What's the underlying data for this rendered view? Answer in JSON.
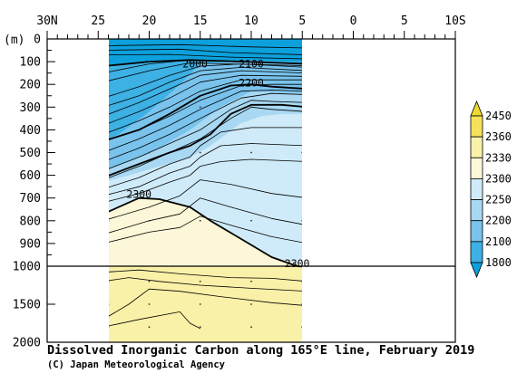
{
  "chart_data": {
    "type": "heatmap",
    "title": "Dissolved Inorganic Carbon along 165°E line, February 2019",
    "credit": "(C) Japan Meteorological Agency",
    "y_unit_label": "(m)",
    "x_ticks": [
      {
        "value": 30,
        "label": "30N"
      },
      {
        "value": 25,
        "label": "25"
      },
      {
        "value": 20,
        "label": "20"
      },
      {
        "value": 15,
        "label": "15"
      },
      {
        "value": 10,
        "label": "10"
      },
      {
        "value": 5,
        "label": "5"
      },
      {
        "value": 0,
        "label": "0"
      },
      {
        "value": -5,
        "label": "5"
      },
      {
        "value": -10,
        "label": "10S"
      }
    ],
    "xlim": [
      30,
      -10
    ],
    "y_ticks_upper": [
      0,
      100,
      200,
      300,
      400,
      500,
      600,
      700,
      800,
      900,
      1000
    ],
    "y_ticks_lower": [
      1500,
      2000
    ],
    "ylim": [
      0,
      2000
    ],
    "y_break": 1000,
    "data_extent_lat": [
      24.5,
      4.5
    ],
    "colorbar": {
      "levels": [
        1800,
        2100,
        2200,
        2250,
        2300,
        2330,
        2360,
        2450
      ],
      "colors": [
        "#0da0dc",
        "#3db0e4",
        "#79c3ec",
        "#a8d8f2",
        "#cfeaf8",
        "#fcf7d8",
        "#faf1a8",
        "#f4e25a",
        "#f0da30"
      ]
    },
    "contour_labels": [
      {
        "text": "2000",
        "lat": 15.5,
        "depth": 125
      },
      {
        "text": "2100",
        "lat": 10.0,
        "depth": 125
      },
      {
        "text": "2200",
        "lat": 10.0,
        "depth": 210
      },
      {
        "text": "2300",
        "lat": 21.0,
        "depth": 700
      },
      {
        "text": "2300",
        "lat": 5.5,
        "depth": 1010
      }
    ]
  }
}
